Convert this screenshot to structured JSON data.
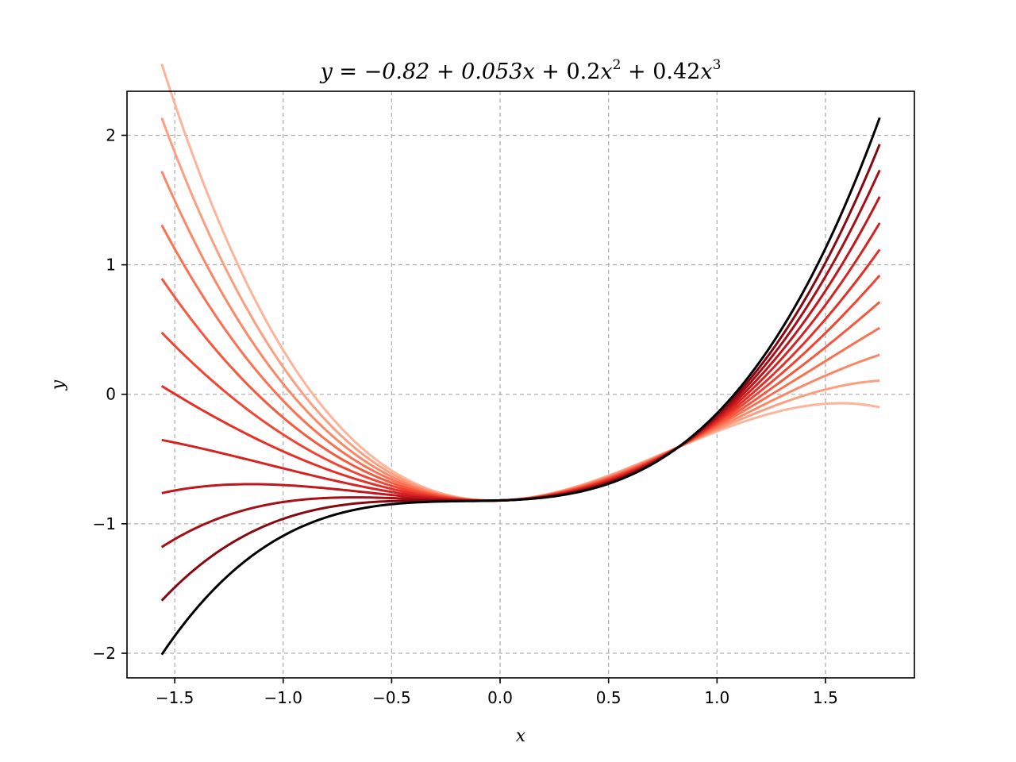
{
  "chart_data": {
    "type": "line",
    "title": {
      "prefix": "y = −0.82 + 0.053",
      "x1": "x",
      "plus2": " + 0.2",
      "x2": "x",
      "exp2": "2",
      "plus3": " + 0.42",
      "x3": "x",
      "exp3": "3"
    },
    "xlabel": "x",
    "ylabel": "y",
    "xlim": [
      -1.72,
      1.91
    ],
    "ylim": [
      -2.19,
      2.34
    ],
    "xticks": [
      {
        "value": -1.5,
        "label": "−1.5"
      },
      {
        "value": -1.0,
        "label": "−1.0"
      },
      {
        "value": -0.5,
        "label": "−0.5"
      },
      {
        "value": 0.0,
        "label": "0.0"
      },
      {
        "value": 0.5,
        "label": "0.5"
      },
      {
        "value": 1.0,
        "label": "1.0"
      },
      {
        "value": 1.5,
        "label": "1.5"
      }
    ],
    "yticks": [
      {
        "value": -2,
        "label": "−2"
      },
      {
        "value": -1,
        "label": "−1"
      },
      {
        "value": 0,
        "label": "0"
      },
      {
        "value": 1,
        "label": "1"
      },
      {
        "value": 2,
        "label": "2"
      }
    ],
    "grid": true,
    "x_range": [
      -1.56,
      1.75
    ],
    "series": [
      {
        "coeffs": [
          -0.82,
          0.053,
          0.2,
          0.42
        ],
        "color": "#000000"
      },
      {
        "coeffs": [
          -0.82,
          0.053,
          0.259,
          0.348
        ],
        "color": "#860811"
      },
      {
        "coeffs": [
          -0.82,
          0.053,
          0.318,
          0.277
        ],
        "color": "#a50f15"
      },
      {
        "coeffs": [
          -0.82,
          0.053,
          0.377,
          0.205
        ],
        "color": "#c1161b"
      },
      {
        "coeffs": [
          -0.82,
          0.053,
          0.435,
          0.134
        ],
        "color": "#d42422"
      },
      {
        "coeffs": [
          -0.82,
          0.053,
          0.494,
          0.062
        ],
        "color": "#e43027"
      },
      {
        "coeffs": [
          -0.82,
          0.053,
          0.553,
          -0.009
        ],
        "color": "#f14432"
      },
      {
        "coeffs": [
          -0.82,
          0.053,
          0.612,
          -0.081
        ],
        "color": "#f6583e"
      },
      {
        "coeffs": [
          -0.82,
          0.053,
          0.671,
          -0.152
        ],
        "color": "#fb7050"
      },
      {
        "coeffs": [
          -0.82,
          0.053,
          0.729,
          -0.224
        ],
        "color": "#fc8767"
      },
      {
        "coeffs": [
          -0.82,
          0.053,
          0.788,
          -0.295
        ],
        "color": "#fc9e80"
      },
      {
        "coeffs": [
          -0.82,
          0.053,
          0.847,
          -0.367
        ],
        "color": "#fdb49a"
      }
    ]
  }
}
